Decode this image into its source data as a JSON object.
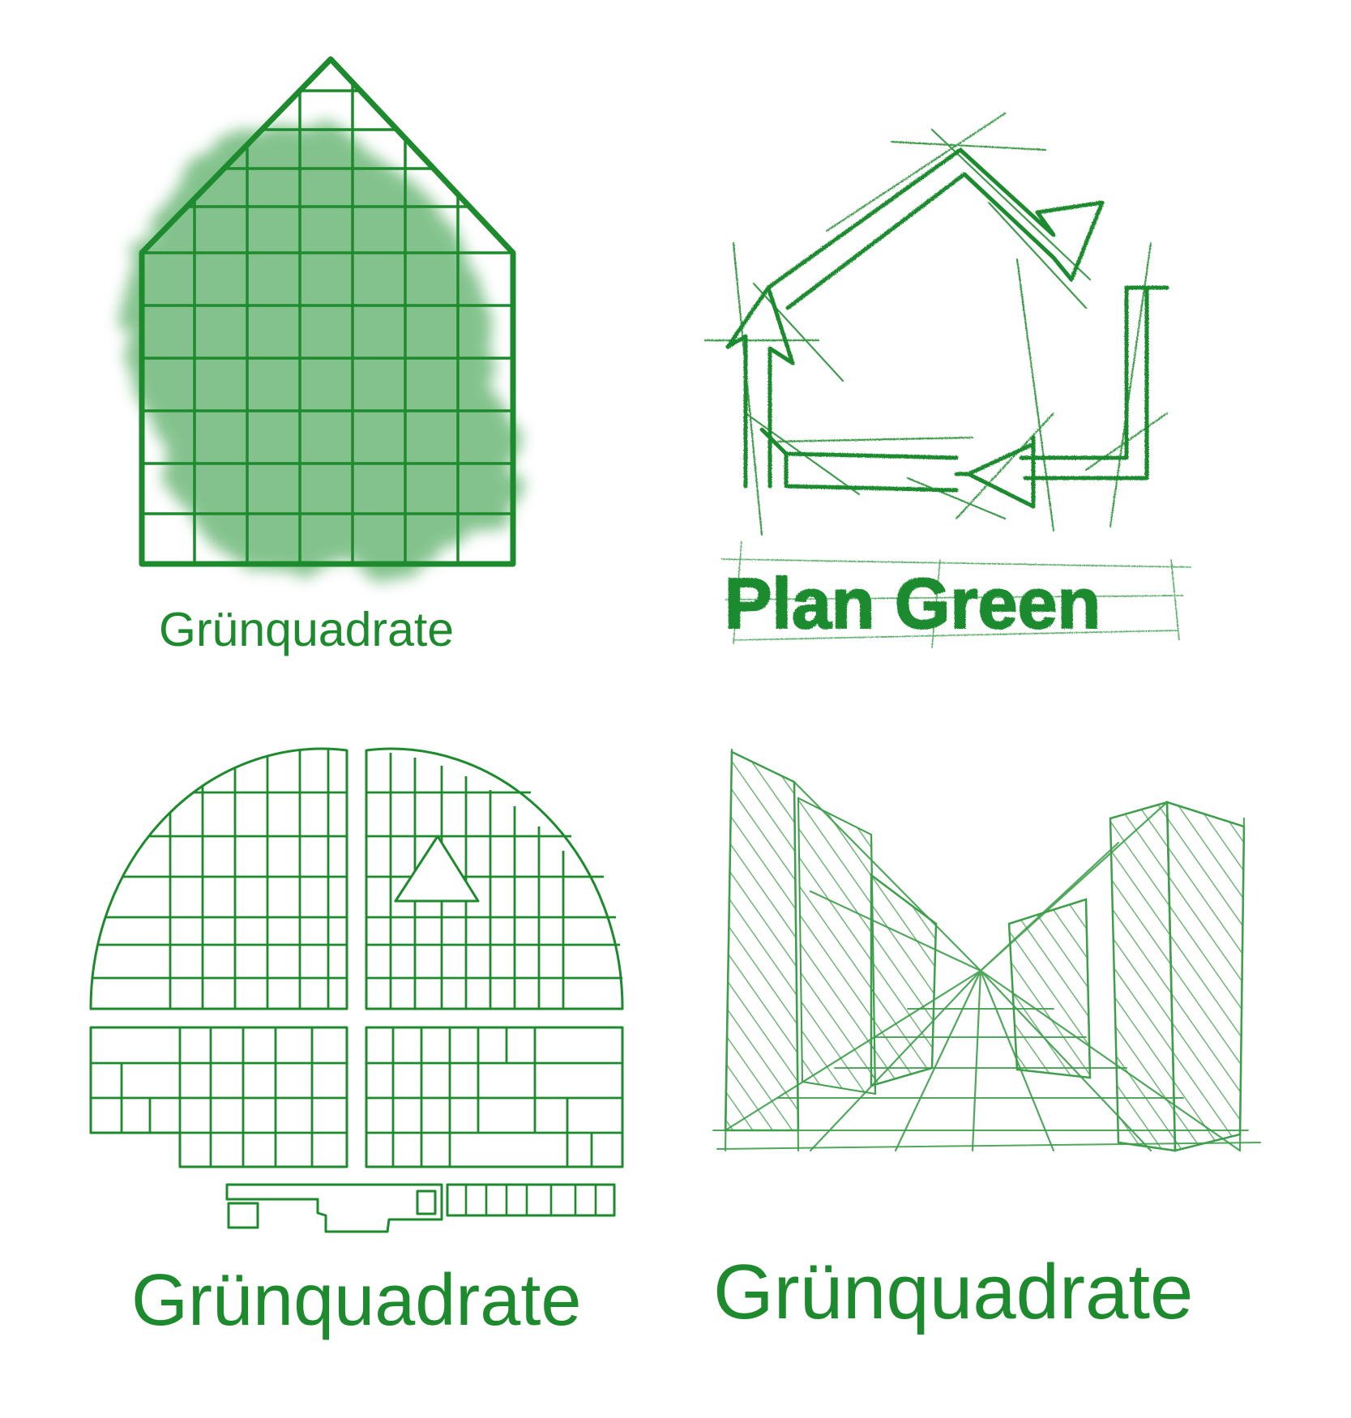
{
  "colors": {
    "brand_green": "#1e8a2e",
    "wash_green": "#62b26e"
  },
  "logos": [
    {
      "name": "Grünquadrate",
      "caption": "Grünquadrate",
      "style": "house grid with watercolour wash"
    },
    {
      "name": "Plan Green",
      "wordmark": "Plan Green",
      "style": "sketched recycling-arrow house"
    },
    {
      "name": "Grünquadrate",
      "caption": "Grünquadrate",
      "style": "semicircular plot map"
    },
    {
      "name": "Grünquadrate",
      "caption": "Grünquadrate",
      "style": "pencil perspective street sketch"
    }
  ]
}
